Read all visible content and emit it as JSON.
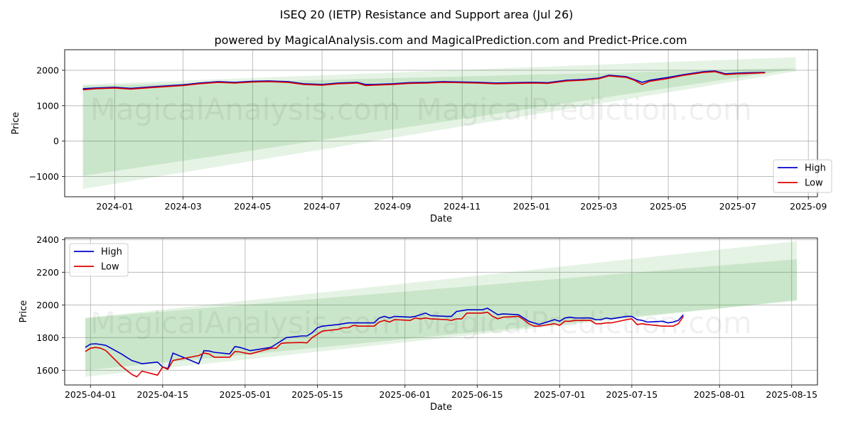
{
  "figure": {
    "title": "ISEQ 20 (IETP) Resistance and Support area (Jul 26)",
    "subtitle": "powered by MagicalAnalysis.com and MagicalPrediction.com and Predict-Price.com",
    "watermark": [
      "MagicalAnalysis.com",
      "MagicalPrediction.com"
    ]
  },
  "chart_data": [
    {
      "type": "line",
      "name": "full-history",
      "xlabel": "Date",
      "ylabel": "Price",
      "xlim": [
        "2023-11-18",
        "2025-09-09"
      ],
      "ylim": [
        -1570,
        2580
      ],
      "xticks": [
        {
          "date": "2024-01-01",
          "label": "2024-01"
        },
        {
          "date": "2024-03-01",
          "label": "2024-03"
        },
        {
          "date": "2024-05-01",
          "label": "2024-05"
        },
        {
          "date": "2024-07-01",
          "label": "2024-07"
        },
        {
          "date": "2024-09-01",
          "label": "2024-09"
        },
        {
          "date": "2024-11-01",
          "label": "2024-11"
        },
        {
          "date": "2025-01-01",
          "label": "2025-01"
        },
        {
          "date": "2025-03-01",
          "label": "2025-03"
        },
        {
          "date": "2025-05-01",
          "label": "2025-05"
        },
        {
          "date": "2025-07-01",
          "label": "2025-07"
        },
        {
          "date": "2025-09-01",
          "label": "2025-09"
        }
      ],
      "yticks": [
        {
          "value": -1000,
          "label": "−1000"
        },
        {
          "value": 0,
          "label": "0"
        },
        {
          "value": 1000,
          "label": "1000"
        },
        {
          "value": 2000,
          "label": "2000"
        }
      ],
      "grid": true,
      "legend": {
        "position": "lower-right",
        "entries": [
          "High",
          "Low"
        ]
      },
      "bands": [
        {
          "name": "resistance-support-outer",
          "x": [
            "2023-12-04",
            "2025-08-21"
          ],
          "upper": [
            1600,
            2370
          ],
          "lower": [
            -1350,
            1970
          ],
          "color": "#2ca02c",
          "opacity": 0.12
        },
        {
          "name": "resistance-support-inner",
          "x": [
            "2023-12-04",
            "2025-08-21"
          ],
          "upper": [
            1560,
            2060
          ],
          "lower": [
            -980,
            2040
          ],
          "color": "#2ca02c",
          "opacity": 0.15
        }
      ],
      "series": [
        {
          "name": "High",
          "color": "#0000cc",
          "x": [
            "2023-12-04",
            "2023-12-15",
            "2024-01-01",
            "2024-01-15",
            "2024-02-01",
            "2024-02-15",
            "2024-03-01",
            "2024-03-15",
            "2024-04-01",
            "2024-04-15",
            "2024-05-01",
            "2024-05-15",
            "2024-06-01",
            "2024-06-15",
            "2024-07-01",
            "2024-07-15",
            "2024-08-01",
            "2024-08-08",
            "2024-08-15",
            "2024-09-01",
            "2024-09-15",
            "2024-10-01",
            "2024-10-15",
            "2024-11-01",
            "2024-11-15",
            "2024-12-01",
            "2024-12-15",
            "2025-01-01",
            "2025-01-15",
            "2025-02-01",
            "2025-02-15",
            "2025-03-01",
            "2025-03-10",
            "2025-03-25",
            "2025-04-01",
            "2025-04-08",
            "2025-04-15",
            "2025-05-01",
            "2025-05-15",
            "2025-06-01",
            "2025-06-11",
            "2025-06-20",
            "2025-07-01",
            "2025-07-10",
            "2025-07-25"
          ],
          "values": [
            1480,
            1500,
            1520,
            1490,
            1530,
            1560,
            1590,
            1640,
            1680,
            1660,
            1690,
            1700,
            1680,
            1620,
            1600,
            1640,
            1660,
            1600,
            1600,
            1620,
            1650,
            1660,
            1680,
            1670,
            1660,
            1640,
            1650,
            1660,
            1650,
            1720,
            1740,
            1780,
            1860,
            1820,
            1740,
            1660,
            1720,
            1800,
            1880,
            1960,
            1980,
            1900,
            1920,
            1930,
            1940
          ]
        },
        {
          "name": "Low",
          "color": "#dd0000",
          "x": [
            "2023-12-04",
            "2023-12-15",
            "2024-01-01",
            "2024-01-15",
            "2024-02-01",
            "2024-02-15",
            "2024-03-01",
            "2024-03-15",
            "2024-04-01",
            "2024-04-15",
            "2024-05-01",
            "2024-05-15",
            "2024-06-01",
            "2024-06-15",
            "2024-07-01",
            "2024-07-15",
            "2024-08-01",
            "2024-08-08",
            "2024-08-15",
            "2024-09-01",
            "2024-09-15",
            "2024-10-01",
            "2024-10-15",
            "2024-11-01",
            "2024-11-15",
            "2024-12-01",
            "2024-12-15",
            "2025-01-01",
            "2025-01-15",
            "2025-02-01",
            "2025-02-15",
            "2025-03-01",
            "2025-03-10",
            "2025-03-25",
            "2025-04-01",
            "2025-04-08",
            "2025-04-15",
            "2025-05-01",
            "2025-05-15",
            "2025-06-01",
            "2025-06-11",
            "2025-06-20",
            "2025-07-01",
            "2025-07-10",
            "2025-07-25"
          ],
          "values": [
            1450,
            1480,
            1500,
            1470,
            1510,
            1540,
            1570,
            1620,
            1660,
            1640,
            1670,
            1680,
            1660,
            1600,
            1580,
            1620,
            1640,
            1570,
            1580,
            1600,
            1630,
            1640,
            1660,
            1650,
            1640,
            1620,
            1630,
            1640,
            1630,
            1700,
            1720,
            1760,
            1840,
            1800,
            1720,
            1600,
            1690,
            1770,
            1860,
            1940,
            1960,
            1880,
            1900,
            1910,
            1930
          ]
        }
      ]
    },
    {
      "type": "line",
      "name": "recent-detail",
      "xlabel": "Date",
      "ylabel": "Price",
      "xlim": [
        "2025-03-27",
        "2025-08-20"
      ],
      "ylim": [
        1510,
        2410
      ],
      "xticks": [
        {
          "date": "2025-04-01",
          "label": "2025-04-01"
        },
        {
          "date": "2025-04-15",
          "label": "2025-04-15"
        },
        {
          "date": "2025-05-01",
          "label": "2025-05-01"
        },
        {
          "date": "2025-05-15",
          "label": "2025-05-15"
        },
        {
          "date": "2025-06-01",
          "label": "2025-06-01"
        },
        {
          "date": "2025-06-15",
          "label": "2025-06-15"
        },
        {
          "date": "2025-07-01",
          "label": "2025-07-01"
        },
        {
          "date": "2025-07-15",
          "label": "2025-07-15"
        },
        {
          "date": "2025-08-01",
          "label": "2025-08-01"
        },
        {
          "date": "2025-08-15",
          "label": "2025-08-15"
        }
      ],
      "yticks": [
        {
          "value": 1600,
          "label": "1600"
        },
        {
          "value": 1800,
          "label": "1800"
        },
        {
          "value": 2000,
          "label": "2000"
        },
        {
          "value": 2200,
          "label": "2200"
        },
        {
          "value": 2400,
          "label": "2400"
        }
      ],
      "grid": true,
      "legend": {
        "position": "upper-left",
        "entries": [
          "High",
          "Low"
        ]
      },
      "bands": [
        {
          "name": "resistance-support-outer",
          "x": [
            "2025-03-31",
            "2025-08-16"
          ],
          "upper": [
            1920,
            2390
          ],
          "lower": [
            1560,
            2030
          ],
          "color": "#2ca02c",
          "opacity": 0.12
        },
        {
          "name": "resistance-support-inner",
          "x": [
            "2025-03-31",
            "2025-08-16"
          ],
          "upper": [
            1920,
            2280
          ],
          "lower": [
            1600,
            2025
          ],
          "color": "#2ca02c",
          "opacity": 0.15
        }
      ],
      "series": [
        {
          "name": "High",
          "color": "#0000cc",
          "x": [
            "2025-03-31",
            "2025-04-01",
            "2025-04-02",
            "2025-04-03",
            "2025-04-04",
            "2025-04-07",
            "2025-04-08",
            "2025-04-09",
            "2025-04-10",
            "2025-04-11",
            "2025-04-14",
            "2025-04-15",
            "2025-04-16",
            "2025-04-17",
            "2025-04-22",
            "2025-04-23",
            "2025-04-24",
            "2025-04-25",
            "2025-04-28",
            "2025-04-29",
            "2025-04-30",
            "2025-05-01",
            "2025-05-02",
            "2025-05-06",
            "2025-05-07",
            "2025-05-08",
            "2025-05-09",
            "2025-05-12",
            "2025-05-13",
            "2025-05-14",
            "2025-05-15",
            "2025-05-16",
            "2025-05-19",
            "2025-05-20",
            "2025-05-21",
            "2025-05-22",
            "2025-05-23",
            "2025-05-26",
            "2025-05-27",
            "2025-05-28",
            "2025-05-29",
            "2025-05-30",
            "2025-06-02",
            "2025-06-03",
            "2025-06-04",
            "2025-06-05",
            "2025-06-06",
            "2025-06-09",
            "2025-06-10",
            "2025-06-11",
            "2025-06-12",
            "2025-06-13",
            "2025-06-16",
            "2025-06-17",
            "2025-06-18",
            "2025-06-19",
            "2025-06-20",
            "2025-06-23",
            "2025-06-24",
            "2025-06-25",
            "2025-06-26",
            "2025-06-27",
            "2025-06-30",
            "2025-07-01",
            "2025-07-02",
            "2025-07-03",
            "2025-07-04",
            "2025-07-07",
            "2025-07-08",
            "2025-07-09",
            "2025-07-10",
            "2025-07-11",
            "2025-07-14",
            "2025-07-15",
            "2025-07-16",
            "2025-07-17",
            "2025-07-18",
            "2025-07-21",
            "2025-07-22",
            "2025-07-23",
            "2025-07-24",
            "2025-07-25"
          ],
          "values": [
            1740,
            1760,
            1762,
            1758,
            1752,
            1700,
            1680,
            1660,
            1650,
            1640,
            1650,
            1620,
            1610,
            1705,
            1640,
            1720,
            1718,
            1710,
            1700,
            1745,
            1740,
            1730,
            1720,
            1740,
            1760,
            1780,
            1800,
            1810,
            1810,
            1830,
            1860,
            1870,
            1880,
            1885,
            1890,
            1890,
            1890,
            1890,
            1920,
            1930,
            1920,
            1930,
            1925,
            1930,
            1940,
            1950,
            1935,
            1930,
            1930,
            1960,
            1965,
            1970,
            1970,
            1980,
            1960,
            1940,
            1945,
            1940,
            1920,
            1900,
            1890,
            1880,
            1910,
            1900,
            1920,
            1925,
            1920,
            1920,
            1910,
            1910,
            1920,
            1915,
            1930,
            1930,
            1910,
            1905,
            1895,
            1900,
            1890,
            1895,
            1905,
            1940
          ]
        },
        {
          "name": "Low",
          "color": "#dd0000",
          "x": [
            "2025-03-31",
            "2025-04-01",
            "2025-04-02",
            "2025-04-03",
            "2025-04-04",
            "2025-04-07",
            "2025-04-08",
            "2025-04-09",
            "2025-04-10",
            "2025-04-11",
            "2025-04-14",
            "2025-04-15",
            "2025-04-16",
            "2025-04-17",
            "2025-04-22",
            "2025-04-23",
            "2025-04-24",
            "2025-04-25",
            "2025-04-28",
            "2025-04-29",
            "2025-04-30",
            "2025-05-01",
            "2025-05-02",
            "2025-05-06",
            "2025-05-07",
            "2025-05-08",
            "2025-05-09",
            "2025-05-12",
            "2025-05-13",
            "2025-05-14",
            "2025-05-15",
            "2025-05-16",
            "2025-05-19",
            "2025-05-20",
            "2025-05-21",
            "2025-05-22",
            "2025-05-23",
            "2025-05-26",
            "2025-05-27",
            "2025-05-28",
            "2025-05-29",
            "2025-05-30",
            "2025-06-02",
            "2025-06-03",
            "2025-06-04",
            "2025-06-05",
            "2025-06-06",
            "2025-06-09",
            "2025-06-10",
            "2025-06-11",
            "2025-06-12",
            "2025-06-13",
            "2025-06-16",
            "2025-06-17",
            "2025-06-18",
            "2025-06-19",
            "2025-06-20",
            "2025-06-23",
            "2025-06-24",
            "2025-06-25",
            "2025-06-26",
            "2025-06-27",
            "2025-06-30",
            "2025-07-01",
            "2025-07-02",
            "2025-07-03",
            "2025-07-04",
            "2025-07-07",
            "2025-07-08",
            "2025-07-09",
            "2025-07-10",
            "2025-07-11",
            "2025-07-14",
            "2025-07-15",
            "2025-07-16",
            "2025-07-17",
            "2025-07-18",
            "2025-07-21",
            "2025-07-22",
            "2025-07-23",
            "2025-07-24",
            "2025-07-25"
          ],
          "values": [
            1715,
            1735,
            1740,
            1735,
            1720,
            1625,
            1600,
            1575,
            1560,
            1595,
            1570,
            1620,
            1605,
            1660,
            1690,
            1705,
            1700,
            1680,
            1680,
            1715,
            1712,
            1705,
            1700,
            1735,
            1735,
            1765,
            1768,
            1770,
            1768,
            1800,
            1820,
            1840,
            1850,
            1860,
            1860,
            1875,
            1870,
            1870,
            1895,
            1905,
            1895,
            1910,
            1905,
            1920,
            1915,
            1920,
            1915,
            1910,
            1905,
            1915,
            1915,
            1950,
            1950,
            1955,
            1930,
            1915,
            1925,
            1930,
            1910,
            1885,
            1870,
            1870,
            1885,
            1875,
            1900,
            1900,
            1905,
            1905,
            1885,
            1885,
            1890,
            1890,
            1910,
            1915,
            1880,
            1885,
            1880,
            1870,
            1870,
            1870,
            1885,
            1930
          ]
        }
      ]
    }
  ]
}
